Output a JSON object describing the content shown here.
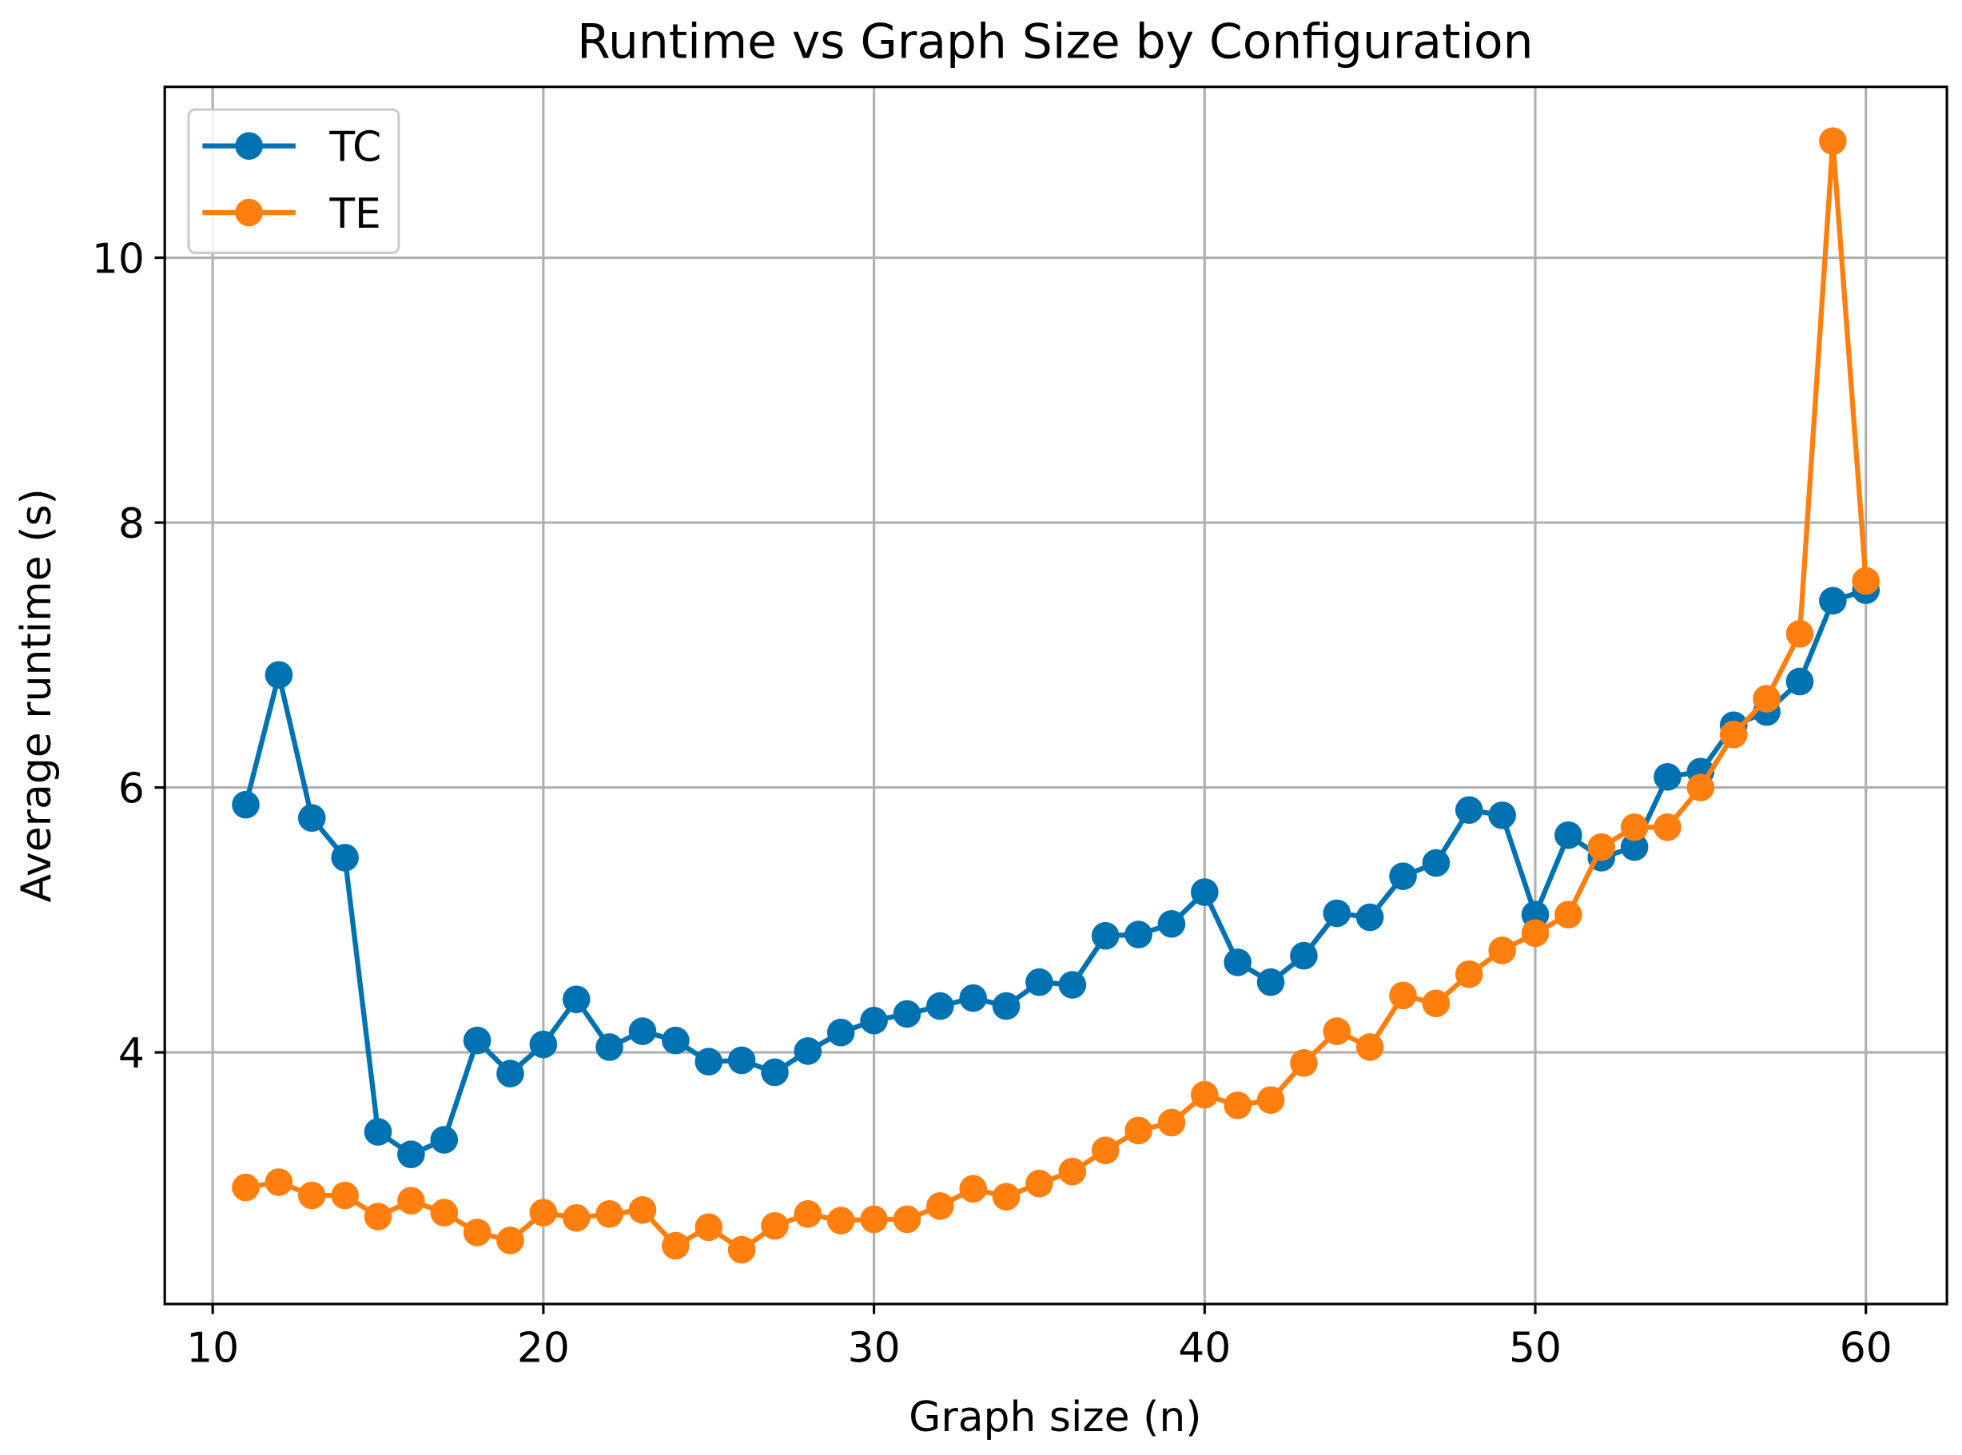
{
  "chart_data": {
    "type": "line",
    "title": "Runtime vs Graph Size by Configuration",
    "xlabel": "Graph size (n)",
    "ylabel": "Average runtime (s)",
    "xlim": [
      8.55,
      62.45
    ],
    "ylim": [
      2.1,
      11.29
    ],
    "xticks": [
      10,
      20,
      30,
      40,
      50,
      60
    ],
    "yticks": [
      4,
      6,
      8,
      10
    ],
    "grid": true,
    "legend_position": "top-left",
    "x": [
      11,
      12,
      13,
      14,
      15,
      16,
      17,
      18,
      19,
      20,
      21,
      22,
      23,
      24,
      25,
      26,
      27,
      28,
      29,
      30,
      31,
      32,
      33,
      34,
      35,
      36,
      37,
      38,
      39,
      40,
      41,
      42,
      43,
      44,
      45,
      46,
      47,
      48,
      49,
      50,
      51,
      52,
      53,
      54,
      55,
      56,
      57,
      58,
      59,
      60
    ],
    "series": [
      {
        "name": "TC",
        "color": "#0072b2",
        "values": [
          5.87,
          6.85,
          5.77,
          5.47,
          3.4,
          3.23,
          3.34,
          4.09,
          3.84,
          4.06,
          4.4,
          4.04,
          4.16,
          4.09,
          3.93,
          3.94,
          3.85,
          4.01,
          4.15,
          4.24,
          4.29,
          4.35,
          4.41,
          4.35,
          4.53,
          4.51,
          4.88,
          4.89,
          4.97,
          5.21,
          4.68,
          4.53,
          4.73,
          5.05,
          5.02,
          5.33,
          5.43,
          5.83,
          5.79,
          5.04,
          5.64,
          5.47,
          5.55,
          6.08,
          6.12,
          6.47,
          6.57,
          6.8,
          7.41,
          7.49
        ]
      },
      {
        "name": "TE",
        "color": "#ff7f0e",
        "values": [
          2.98,
          3.02,
          2.92,
          2.92,
          2.76,
          2.88,
          2.79,
          2.64,
          2.58,
          2.79,
          2.75,
          2.78,
          2.81,
          2.54,
          2.68,
          2.51,
          2.69,
          2.78,
          2.73,
          2.74,
          2.74,
          2.84,
          2.97,
          2.91,
          3.01,
          3.1,
          3.26,
          3.41,
          3.47,
          3.68,
          3.6,
          3.64,
          3.92,
          4.16,
          4.04,
          4.43,
          4.37,
          4.59,
          4.77,
          4.9,
          5.04,
          5.55,
          5.7,
          5.7,
          6.0,
          6.4,
          6.67,
          7.16,
          10.88,
          7.56
        ]
      }
    ]
  }
}
